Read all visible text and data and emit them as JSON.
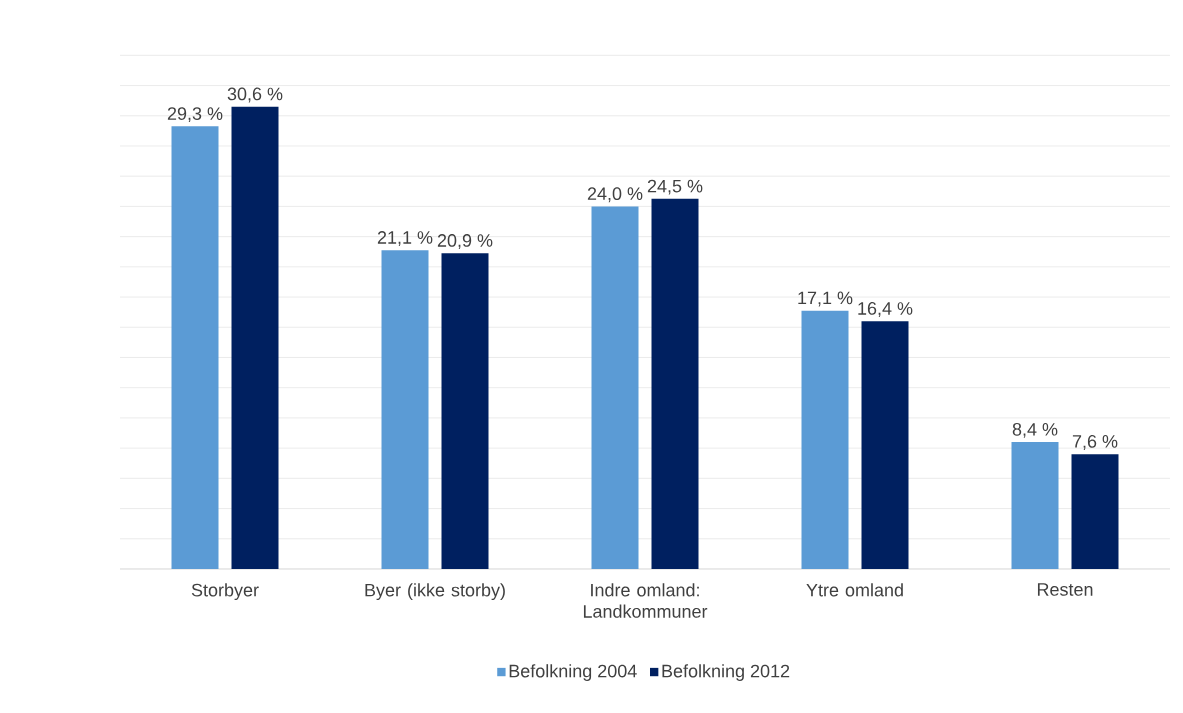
{
  "chart_data": {
    "type": "bar",
    "categories": [
      "Storbyer",
      "Byer (ikke storby)",
      "Indre omland: Landkommuner",
      "Ytre omland",
      "Resten"
    ],
    "series": [
      {
        "name": "Befolkning 2004",
        "color": "#5b9bd5",
        "values": [
          29.3,
          21.1,
          24.0,
          17.1,
          8.4
        ],
        "value_labels": [
          "29,3 %",
          "21,1 %",
          "24,0 %",
          "17,1 %",
          "8,4 %"
        ]
      },
      {
        "name": "Befolkning 2012",
        "color": "#002060",
        "values": [
          30.6,
          20.9,
          24.5,
          16.4,
          7.6
        ],
        "value_labels": [
          "30,6 %",
          "20,9 %",
          "24,5 %",
          "16,4 %",
          "7,6 %"
        ]
      }
    ],
    "tick_labels": "x",
    "grid": "y",
    "legend": "bottom"
  }
}
